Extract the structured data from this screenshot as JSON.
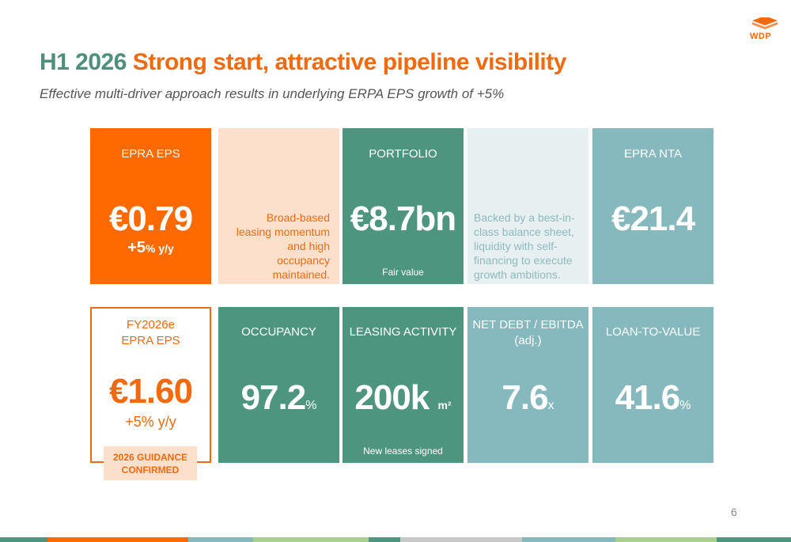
{
  "logo": {
    "text": "WDP"
  },
  "header": {
    "title_lead": "H1 2026",
    "title_rest": "Strong start, attractive pipeline visibility",
    "subtitle": "Effective multi-driver approach results in underlying ERPA EPS growth of +5%"
  },
  "tiles": {
    "epra_eps": {
      "label": "EPRA EPS",
      "value": "€0.79",
      "growth_num": "+5",
      "growth_unit": "% y/y"
    },
    "leasing_desc": {
      "text_lines": [
        "Broad-based",
        "leasing momentum",
        "and high",
        "occupancy",
        "maintained."
      ]
    },
    "portfolio": {
      "label": "PORTFOLIO",
      "value": "€8.7bn",
      "footnote": "Fair value"
    },
    "balance_desc": {
      "text_lines": [
        "Backed by a best-in-",
        "class balance sheet,",
        "liquidity with self-",
        "financing to execute",
        "growth ambitions."
      ]
    },
    "epra_nta": {
      "label": "EPRA NTA",
      "value": "€21.4"
    },
    "fy2026e": {
      "label_line1": "FY2026e",
      "label_line2": "EPRA EPS",
      "value": "€1.60",
      "growth": "+5% y/y"
    },
    "occupancy": {
      "label": "OCCUPANCY",
      "value": "97.2",
      "unit": "%"
    },
    "leasing_activity": {
      "label": "LEASING ACTIVITY",
      "value": "200k",
      "unit": "m²",
      "footnote": "New leases signed"
    },
    "net_debt": {
      "label_line1": "NET DEBT / EBITDA",
      "label_line2": "(adj.)",
      "value": "7.6",
      "unit": "x"
    },
    "ltv": {
      "label": "LOAN-TO-VALUE",
      "value": "41.6",
      "unit": "%"
    }
  },
  "badge": {
    "line1": "2026 GUIDANCE",
    "line2": "CONFIRMED"
  },
  "page": {
    "number": "6"
  },
  "colors": {
    "orange": "#ff6a00",
    "green": "#4e9580",
    "teal": "#86b9bd",
    "peach": "#fde0cc",
    "pale": "#e7f0f1"
  }
}
